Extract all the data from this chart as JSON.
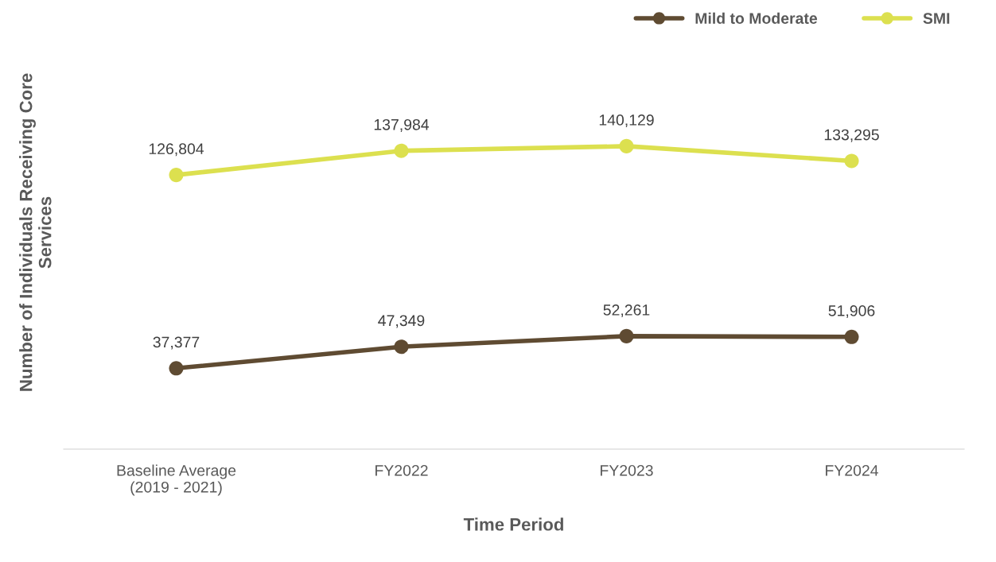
{
  "chart_data": {
    "type": "line",
    "xlabel": "Time Period",
    "ylabel": "Number of Individuals Receiving Core\nServices",
    "categories": [
      "Baseline Average\n(2019 - 2021)",
      "FY2022",
      "FY2023",
      "FY2024"
    ],
    "series": [
      {
        "name": "Mild to Moderate",
        "color": "#5f4b32",
        "values": [
          37377,
          47349,
          52261,
          51906
        ],
        "value_labels": [
          "37,377",
          "47,349",
          "52,261",
          "51,906"
        ]
      },
      {
        "name": "SMI",
        "color": "#dce04f",
        "values": [
          126804,
          137984,
          140129,
          133295
        ],
        "value_labels": [
          "126,804",
          "137,984",
          "140,129",
          "133,295"
        ]
      }
    ],
    "legend": "top right",
    "marker": "circle",
    "line_style": "solid",
    "grid": false,
    "tick_labels": "x"
  }
}
